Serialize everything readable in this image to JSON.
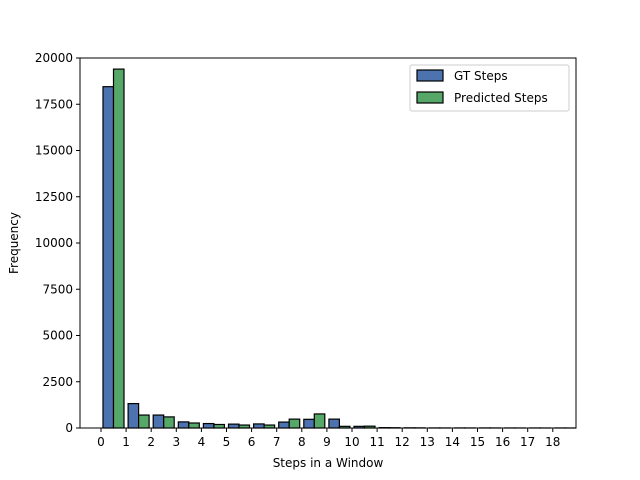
{
  "chart_data": {
    "type": "bar",
    "categories": [
      "0",
      "1",
      "2",
      "3",
      "4",
      "5",
      "6",
      "7",
      "8",
      "9",
      "10",
      "11",
      "12",
      "13",
      "14",
      "15",
      "16",
      "17",
      "18"
    ],
    "series": [
      {
        "name": "GT Steps",
        "color": "#4c72b0",
        "values": [
          18450,
          1320,
          700,
          330,
          240,
          210,
          220,
          320,
          470,
          480,
          90,
          20,
          10,
          5,
          5,
          5,
          3,
          3,
          3
        ]
      },
      {
        "name": "Predicted Steps",
        "color": "#55a868",
        "values": [
          19400,
          700,
          600,
          270,
          190,
          160,
          160,
          480,
          760,
          90,
          100,
          15,
          8,
          4,
          3,
          3,
          2,
          2,
          2
        ]
      }
    ],
    "xlabel": "Steps in a Window",
    "ylabel": "Frequency",
    "ylim": [
      0,
      20000
    ],
    "yticks": [
      "0",
      "2500",
      "5000",
      "7500",
      "10000",
      "12500",
      "15000",
      "17500",
      "20000"
    ],
    "legend_position": "top-right",
    "grid": false
  }
}
